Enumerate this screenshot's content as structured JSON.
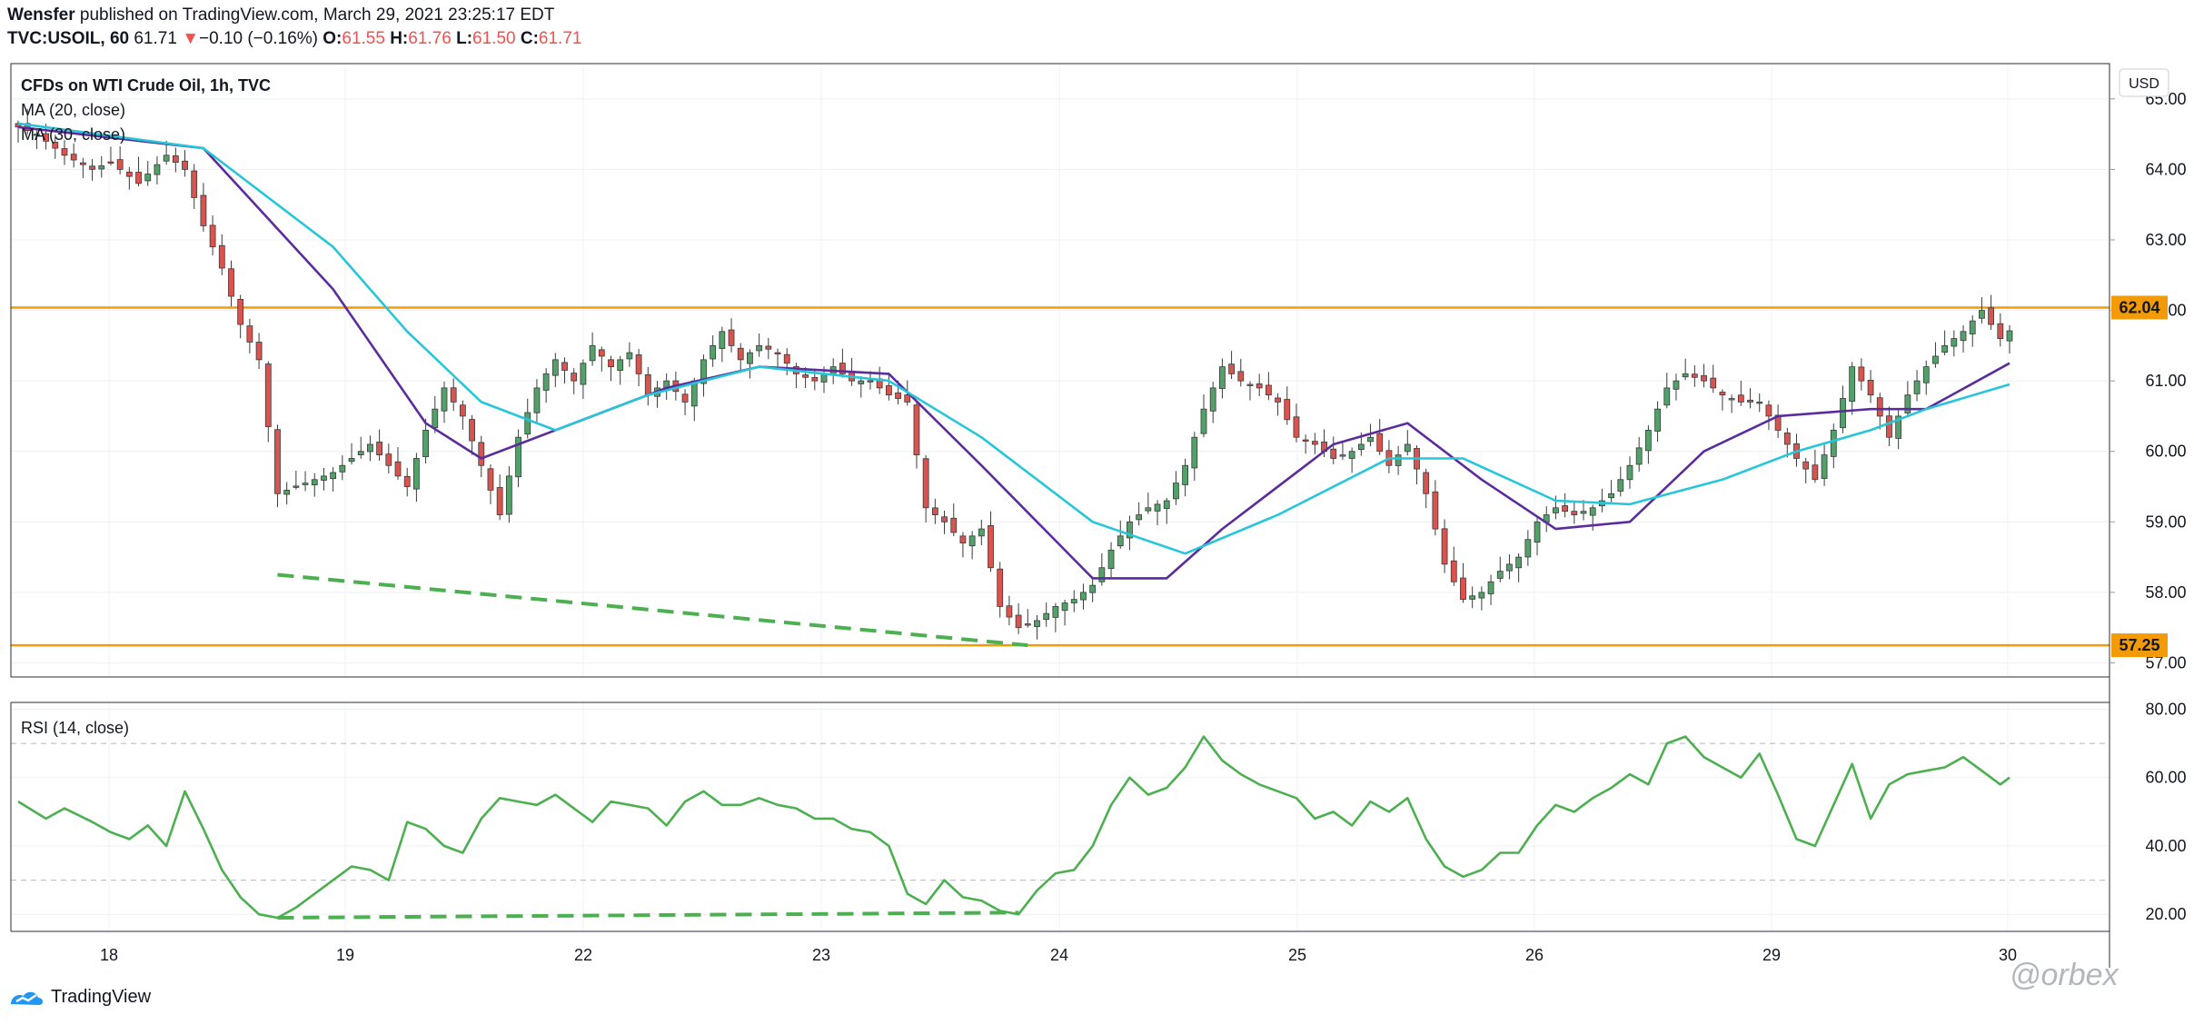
{
  "header": {
    "author": "Wensfer",
    "published_text": "published on TradingView.com, March 29, 2021 23:25:17 EDT",
    "symbol": "TVC:USOIL, 60",
    "last": "61.71",
    "change_arrow": "▼",
    "change": "−0.10 (−0.16%)",
    "o_label": "O:",
    "o": "61.55",
    "h_label": "H:",
    "h": "61.76",
    "l_label": "L:",
    "l": "61.50",
    "c_label": "C:",
    "c": "61.71"
  },
  "legend": {
    "title": "CFDs on WTI Crude Oil, 1h, TVC",
    "ma20": "MA (20, close)",
    "ma30": "MA (30, close)",
    "rsi": "RSI (14, close)"
  },
  "currency": "USD",
  "footer": {
    "brand": "TradingView",
    "watermark": "@orbex"
  },
  "colors": {
    "up": "#53a06b",
    "down": "#d9534f",
    "ma20": "#5b2c9c",
    "ma30": "#26c6da",
    "level": "#f29b06",
    "rsi": "#4caf50",
    "trend": "#4caf50",
    "grid": "#eef0f3"
  },
  "chart_data": [
    {
      "type": "candlestick",
      "title": "CFDs on WTI Crude Oil, 1h, TVC",
      "ylabel": "USD",
      "ylim": [
        56.8,
        65.5
      ],
      "y_ticks": [
        "57.00",
        "58.00",
        "59.00",
        "60.00",
        "61.00",
        "62.00",
        "63.00",
        "64.00",
        "65.00"
      ],
      "x_ticks": [
        "18",
        "19",
        "22",
        "23",
        "24",
        "25",
        "26",
        "29",
        "30"
      ],
      "grid": true,
      "horizontal_levels": [
        {
          "price": 62.04,
          "label": "62.04"
        },
        {
          "price": 57.25,
          "label": "57.25"
        }
      ],
      "close_anchors": [
        [
          0,
          64.6
        ],
        [
          2,
          64.5
        ],
        [
          5,
          64.2
        ],
        [
          8,
          64.0
        ],
        [
          10,
          64.1
        ],
        [
          13,
          63.8
        ],
        [
          16,
          64.2
        ],
        [
          18,
          64.0
        ],
        [
          20,
          63.2
        ],
        [
          22,
          62.6
        ],
        [
          24,
          61.8
        ],
        [
          26,
          61.3
        ],
        [
          28,
          59.4
        ],
        [
          30,
          59.5
        ],
        [
          34,
          59.7
        ],
        [
          38,
          60.1
        ],
        [
          42,
          59.5
        ],
        [
          44,
          60.3
        ],
        [
          46,
          60.9
        ],
        [
          48,
          60.5
        ],
        [
          50,
          59.8
        ],
        [
          52,
          59.1
        ],
        [
          54,
          60.2
        ],
        [
          56,
          60.9
        ],
        [
          58,
          61.3
        ],
        [
          60,
          61.0
        ],
        [
          62,
          61.5
        ],
        [
          64,
          61.2
        ],
        [
          66,
          61.4
        ],
        [
          68,
          60.8
        ],
        [
          70,
          61.0
        ],
        [
          72,
          60.7
        ],
        [
          74,
          61.3
        ],
        [
          76,
          61.7
        ],
        [
          78,
          61.3
        ],
        [
          80,
          61.5
        ],
        [
          82,
          61.4
        ],
        [
          84,
          61.1
        ],
        [
          86,
          61.0
        ],
        [
          88,
          61.2
        ],
        [
          90,
          61.0
        ],
        [
          92,
          61.0
        ],
        [
          94,
          60.8
        ],
        [
          96,
          60.7
        ],
        [
          98,
          59.2
        ],
        [
          100,
          59.0
        ],
        [
          102,
          58.7
        ],
        [
          104,
          58.9
        ],
        [
          106,
          57.8
        ],
        [
          108,
          57.5
        ],
        [
          110,
          57.6
        ],
        [
          112,
          57.8
        ],
        [
          114,
          57.9
        ],
        [
          116,
          58.1
        ],
        [
          118,
          58.6
        ],
        [
          120,
          59.0
        ],
        [
          122,
          59.2
        ],
        [
          124,
          59.3
        ],
        [
          126,
          59.8
        ],
        [
          128,
          60.6
        ],
        [
          130,
          61.2
        ],
        [
          132,
          61.0
        ],
        [
          134,
          60.9
        ],
        [
          136,
          60.7
        ],
        [
          138,
          60.2
        ],
        [
          140,
          60.1
        ],
        [
          142,
          59.9
        ],
        [
          144,
          60.0
        ],
        [
          146,
          60.2
        ],
        [
          148,
          59.8
        ],
        [
          150,
          60.1
        ],
        [
          152,
          59.4
        ],
        [
          154,
          58.4
        ],
        [
          156,
          57.9
        ],
        [
          158,
          58.0
        ],
        [
          160,
          58.3
        ],
        [
          162,
          58.5
        ],
        [
          164,
          59.0
        ],
        [
          166,
          59.2
        ],
        [
          168,
          59.1
        ],
        [
          170,
          59.2
        ],
        [
          172,
          59.4
        ],
        [
          174,
          59.8
        ],
        [
          176,
          60.3
        ],
        [
          178,
          60.9
        ],
        [
          180,
          61.1
        ],
        [
          182,
          61.0
        ],
        [
          184,
          60.8
        ],
        [
          186,
          60.7
        ],
        [
          188,
          60.7
        ],
        [
          190,
          60.3
        ],
        [
          192,
          59.9
        ],
        [
          194,
          59.6
        ],
        [
          196,
          60.3
        ],
        [
          198,
          61.2
        ],
        [
          200,
          60.8
        ],
        [
          202,
          60.2
        ],
        [
          204,
          60.8
        ],
        [
          206,
          61.2
        ],
        [
          208,
          61.5
        ],
        [
          210,
          61.7
        ],
        [
          212,
          62.0
        ],
        [
          213,
          61.8
        ],
        [
          214,
          61.6
        ],
        [
          215,
          61.71
        ]
      ],
      "series": [
        {
          "name": "MA (20, close)",
          "type": "line",
          "points": [
            [
              0,
              64.6
            ],
            [
              20,
              64.3
            ],
            [
              34,
              62.3
            ],
            [
              44,
              60.4
            ],
            [
              50,
              59.9
            ],
            [
              60,
              60.4
            ],
            [
              70,
              60.9
            ],
            [
              80,
              61.2
            ],
            [
              94,
              61.1
            ],
            [
              104,
              59.8
            ],
            [
              116,
              58.2
            ],
            [
              124,
              58.2
            ],
            [
              130,
              58.9
            ],
            [
              142,
              60.1
            ],
            [
              150,
              60.4
            ],
            [
              158,
              59.6
            ],
            [
              166,
              58.9
            ],
            [
              174,
              59.0
            ],
            [
              182,
              60.0
            ],
            [
              190,
              60.5
            ],
            [
              200,
              60.6
            ],
            [
              206,
              60.6
            ],
            [
              215,
              61.25
            ]
          ]
        },
        {
          "name": "MA (30, close)",
          "type": "line",
          "points": [
            [
              0,
              64.65
            ],
            [
              20,
              64.3
            ],
            [
              34,
              62.9
            ],
            [
              42,
              61.7
            ],
            [
              50,
              60.7
            ],
            [
              58,
              60.3
            ],
            [
              68,
              60.8
            ],
            [
              80,
              61.2
            ],
            [
              94,
              61.0
            ],
            [
              104,
              60.2
            ],
            [
              116,
              59.0
            ],
            [
              126,
              58.55
            ],
            [
              136,
              59.1
            ],
            [
              148,
              59.9
            ],
            [
              156,
              59.9
            ],
            [
              166,
              59.3
            ],
            [
              174,
              59.25
            ],
            [
              184,
              59.6
            ],
            [
              192,
              60.0
            ],
            [
              200,
              60.3
            ],
            [
              206,
              60.6
            ],
            [
              215,
              60.95
            ]
          ]
        }
      ],
      "annotations": [
        {
          "type": "dashed-trendline",
          "from": [
            28,
            58.25
          ],
          "to": [
            109,
            57.25
          ]
        }
      ]
    },
    {
      "type": "line",
      "title": "RSI (14, close)",
      "ylim": [
        15,
        82
      ],
      "y_ticks": [
        "20.00",
        "40.00",
        "60.00",
        "80.00"
      ],
      "reference_levels": [
        70,
        30
      ],
      "series": [
        {
          "name": "RSI (14, close)",
          "points": [
            [
              0,
              53
            ],
            [
              3,
              48
            ],
            [
              5,
              51
            ],
            [
              8,
              47
            ],
            [
              10,
              44
            ],
            [
              12,
              42
            ],
            [
              14,
              46
            ],
            [
              16,
              40
            ],
            [
              18,
              56
            ],
            [
              20,
              45
            ],
            [
              22,
              33
            ],
            [
              24,
              25
            ],
            [
              26,
              20
            ],
            [
              28,
              19
            ],
            [
              30,
              22
            ],
            [
              34,
              30
            ],
            [
              36,
              34
            ],
            [
              38,
              33
            ],
            [
              40,
              30
            ],
            [
              42,
              47
            ],
            [
              44,
              45
            ],
            [
              46,
              40
            ],
            [
              48,
              38
            ],
            [
              50,
              48
            ],
            [
              52,
              54
            ],
            [
              54,
              53
            ],
            [
              56,
              52
            ],
            [
              58,
              55
            ],
            [
              60,
              51
            ],
            [
              62,
              47
            ],
            [
              64,
              53
            ],
            [
              66,
              52
            ],
            [
              68,
              51
            ],
            [
              70,
              46
            ],
            [
              72,
              53
            ],
            [
              74,
              56
            ],
            [
              76,
              52
            ],
            [
              78,
              52
            ],
            [
              80,
              54
            ],
            [
              82,
              52
            ],
            [
              84,
              51
            ],
            [
              86,
              48
            ],
            [
              88,
              48
            ],
            [
              90,
              45
            ],
            [
              92,
              44
            ],
            [
              94,
              40
            ],
            [
              96,
              26
            ],
            [
              98,
              23
            ],
            [
              100,
              30
            ],
            [
              102,
              25
            ],
            [
              104,
              24
            ],
            [
              106,
              21
            ],
            [
              108,
              20
            ],
            [
              110,
              27
            ],
            [
              112,
              32
            ],
            [
              114,
              33
            ],
            [
              116,
              40
            ],
            [
              118,
              52
            ],
            [
              120,
              60
            ],
            [
              122,
              55
            ],
            [
              124,
              57
            ],
            [
              126,
              63
            ],
            [
              128,
              72
            ],
            [
              130,
              65
            ],
            [
              132,
              61
            ],
            [
              134,
              58
            ],
            [
              136,
              56
            ],
            [
              138,
              54
            ],
            [
              140,
              48
            ],
            [
              142,
              50
            ],
            [
              144,
              46
            ],
            [
              146,
              53
            ],
            [
              148,
              50
            ],
            [
              150,
              54
            ],
            [
              152,
              42
            ],
            [
              154,
              34
            ],
            [
              156,
              31
            ],
            [
              158,
              33
            ],
            [
              160,
              38
            ],
            [
              162,
              38
            ],
            [
              164,
              46
            ],
            [
              166,
              52
            ],
            [
              168,
              50
            ],
            [
              170,
              54
            ],
            [
              172,
              57
            ],
            [
              174,
              61
            ],
            [
              176,
              58
            ],
            [
              178,
              70
            ],
            [
              180,
              72
            ],
            [
              182,
              66
            ],
            [
              184,
              63
            ],
            [
              186,
              60
            ],
            [
              188,
              67
            ],
            [
              190,
              55
            ],
            [
              192,
              42
            ],
            [
              194,
              40
            ],
            [
              196,
              52
            ],
            [
              198,
              64
            ],
            [
              200,
              48
            ],
            [
              202,
              58
            ],
            [
              204,
              61
            ],
            [
              206,
              62
            ],
            [
              208,
              63
            ],
            [
              210,
              66
            ],
            [
              212,
              62
            ],
            [
              214,
              58
            ],
            [
              215,
              60
            ]
          ]
        }
      ],
      "annotations": [
        {
          "type": "dashed-trendline",
          "from": [
            28,
            19
          ],
          "to": [
            108,
            20.5
          ]
        }
      ]
    }
  ]
}
